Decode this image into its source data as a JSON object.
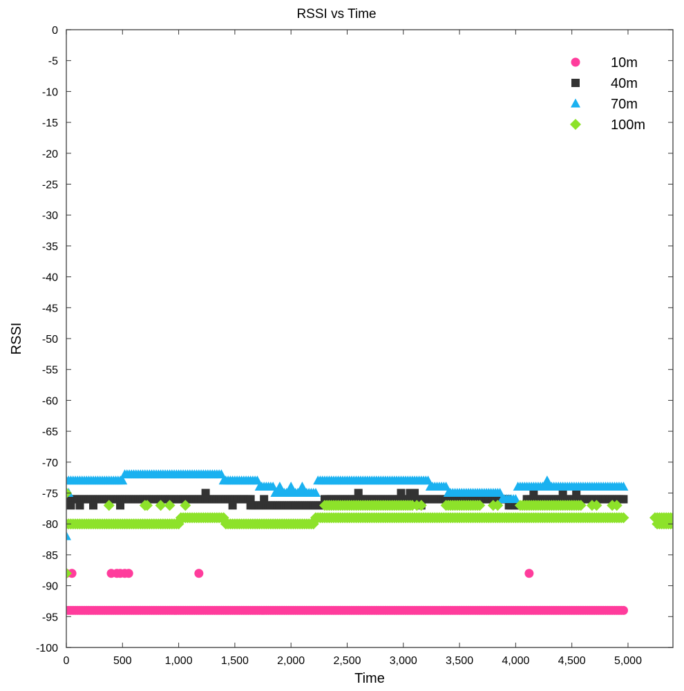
{
  "chart_data": {
    "type": "scatter",
    "title": "RSSI vs Time",
    "xlabel": "Time",
    "ylabel": "RSSI",
    "xlim": [
      0,
      5400
    ],
    "ylim": [
      -100,
      0
    ],
    "x_ticks": [
      0,
      500,
      1000,
      1500,
      2000,
      2500,
      3000,
      3500,
      4000,
      4500,
      5000
    ],
    "x_tick_labels": [
      "0",
      "500",
      "1,000",
      "1,500",
      "2,000",
      "2,500",
      "3,000",
      "3,500",
      "4,000",
      "4,500",
      "5,000"
    ],
    "y_ticks": [
      0,
      -5,
      -10,
      -15,
      -20,
      -25,
      -30,
      -35,
      -40,
      -45,
      -50,
      -55,
      -60,
      -65,
      -70,
      -75,
      -80,
      -85,
      -90,
      -95,
      -100
    ],
    "y_tick_labels": [
      "0",
      "-5",
      "-10",
      "-15",
      "-20",
      "-25",
      "-30",
      "-35",
      "-40",
      "-45",
      "-50",
      "-55",
      "-60",
      "-65",
      "-70",
      "-75",
      "-80",
      "-85",
      "-90",
      "-95",
      "-100"
    ],
    "grid": false,
    "legend_position": "top-right",
    "series": [
      {
        "name": "10m",
        "marker": "circle",
        "color": "#ff3c9c",
        "segments": [
          {
            "x_start": 0,
            "x_end": 4960,
            "step": 20,
            "y": -94
          }
        ],
        "points": [
          {
            "x": 0,
            "y": -88
          },
          {
            "x": 50,
            "y": -88
          },
          {
            "x": 400,
            "y": -88
          },
          {
            "x": 450,
            "y": -88
          },
          {
            "x": 480,
            "y": -88
          },
          {
            "x": 520,
            "y": -88
          },
          {
            "x": 555,
            "y": -88
          },
          {
            "x": 1180,
            "y": -88
          },
          {
            "x": 4120,
            "y": -88
          }
        ]
      },
      {
        "name": "40m",
        "marker": "square",
        "color": "#333333",
        "segments": [
          {
            "x_start": 20,
            "x_end": 1640,
            "step": 20,
            "y": -76
          },
          {
            "x_start": 1660,
            "x_end": 1880,
            "step": 20,
            "y": -77
          },
          {
            "x_start": 1900,
            "x_end": 2280,
            "step": 20,
            "y": -77
          },
          {
            "x_start": 2300,
            "x_end": 3380,
            "step": 20,
            "y": -76
          },
          {
            "x_start": 3400,
            "x_end": 3920,
            "step": 20,
            "y": -76
          },
          {
            "x_start": 3940,
            "x_end": 4080,
            "step": 20,
            "y": -77
          },
          {
            "x_start": 4100,
            "x_end": 4960,
            "step": 20,
            "y": -76
          }
        ],
        "points": [
          {
            "x": 40,
            "y": -77
          },
          {
            "x": 120,
            "y": -77
          },
          {
            "x": 240,
            "y": -77
          },
          {
            "x": 480,
            "y": -77
          },
          {
            "x": 1240,
            "y": -75
          },
          {
            "x": 1480,
            "y": -77
          },
          {
            "x": 1640,
            "y": -77
          },
          {
            "x": 1760,
            "y": -76
          },
          {
            "x": 2600,
            "y": -75
          },
          {
            "x": 2980,
            "y": -75
          },
          {
            "x": 3060,
            "y": -75
          },
          {
            "x": 3100,
            "y": -75
          },
          {
            "x": 3160,
            "y": -77
          },
          {
            "x": 4160,
            "y": -75
          },
          {
            "x": 4420,
            "y": -75
          },
          {
            "x": 4540,
            "y": -75
          }
        ]
      },
      {
        "name": "70m",
        "marker": "triangle",
        "color": "#1ab1f0",
        "segments": [
          {
            "x_start": 0,
            "x_end": 280,
            "step": 20,
            "y": -73
          },
          {
            "x_start": 300,
            "x_end": 500,
            "step": 20,
            "y": -73
          },
          {
            "x_start": 520,
            "x_end": 1380,
            "step": 20,
            "y": -72
          },
          {
            "x_start": 1400,
            "x_end": 1700,
            "step": 20,
            "y": -73
          },
          {
            "x_start": 1720,
            "x_end": 1840,
            "step": 20,
            "y": -74
          },
          {
            "x_start": 1860,
            "x_end": 2220,
            "step": 20,
            "y": -75
          },
          {
            "x_start": 2240,
            "x_end": 3220,
            "step": 20,
            "y": -73
          },
          {
            "x_start": 3240,
            "x_end": 3380,
            "step": 20,
            "y": -74
          },
          {
            "x_start": 3400,
            "x_end": 3860,
            "step": 20,
            "y": -75
          },
          {
            "x_start": 3880,
            "x_end": 4000,
            "step": 20,
            "y": -76
          },
          {
            "x_start": 4020,
            "x_end": 4960,
            "step": 20,
            "y": -74
          }
        ],
        "points": [
          {
            "x": 0,
            "y": -82
          },
          {
            "x": 20,
            "y": -75
          },
          {
            "x": 1900,
            "y": -74
          },
          {
            "x": 2000,
            "y": -74
          },
          {
            "x": 2100,
            "y": -74
          },
          {
            "x": 4280,
            "y": -73
          },
          {
            "x": 5280,
            "y": -80
          },
          {
            "x": 5340,
            "y": -80
          }
        ]
      },
      {
        "name": "100m",
        "marker": "diamond",
        "color": "#8de22a",
        "segments": [
          {
            "x_start": 0,
            "x_end": 1000,
            "step": 20,
            "y": -80
          },
          {
            "x_start": 1020,
            "x_end": 1400,
            "step": 20,
            "y": -79
          },
          {
            "x_start": 1420,
            "x_end": 2200,
            "step": 20,
            "y": -80
          },
          {
            "x_start": 2220,
            "x_end": 4960,
            "step": 20,
            "y": -79
          },
          {
            "x_start": 2300,
            "x_end": 3080,
            "step": 20,
            "y": -77
          },
          {
            "x_start": 3380,
            "x_end": 3680,
            "step": 20,
            "y": -77
          },
          {
            "x_start": 4040,
            "x_end": 4580,
            "step": 20,
            "y": -77
          },
          {
            "x_start": 5240,
            "x_end": 5400,
            "step": 20,
            "y": -79
          },
          {
            "x_start": 5260,
            "x_end": 5400,
            "step": 20,
            "y": -80
          }
        ],
        "points": [
          {
            "x": 0,
            "y": -75
          },
          {
            "x": 0,
            "y": -88
          },
          {
            "x": 380,
            "y": -77
          },
          {
            "x": 700,
            "y": -77
          },
          {
            "x": 720,
            "y": -77
          },
          {
            "x": 840,
            "y": -77
          },
          {
            "x": 920,
            "y": -77
          },
          {
            "x": 1060,
            "y": -77
          },
          {
            "x": 3120,
            "y": -77
          },
          {
            "x": 3160,
            "y": -77
          },
          {
            "x": 3800,
            "y": -77
          },
          {
            "x": 3840,
            "y": -77
          },
          {
            "x": 4680,
            "y": -77
          },
          {
            "x": 4720,
            "y": -77
          },
          {
            "x": 4860,
            "y": -77
          },
          {
            "x": 4900,
            "y": -77
          }
        ]
      }
    ]
  }
}
